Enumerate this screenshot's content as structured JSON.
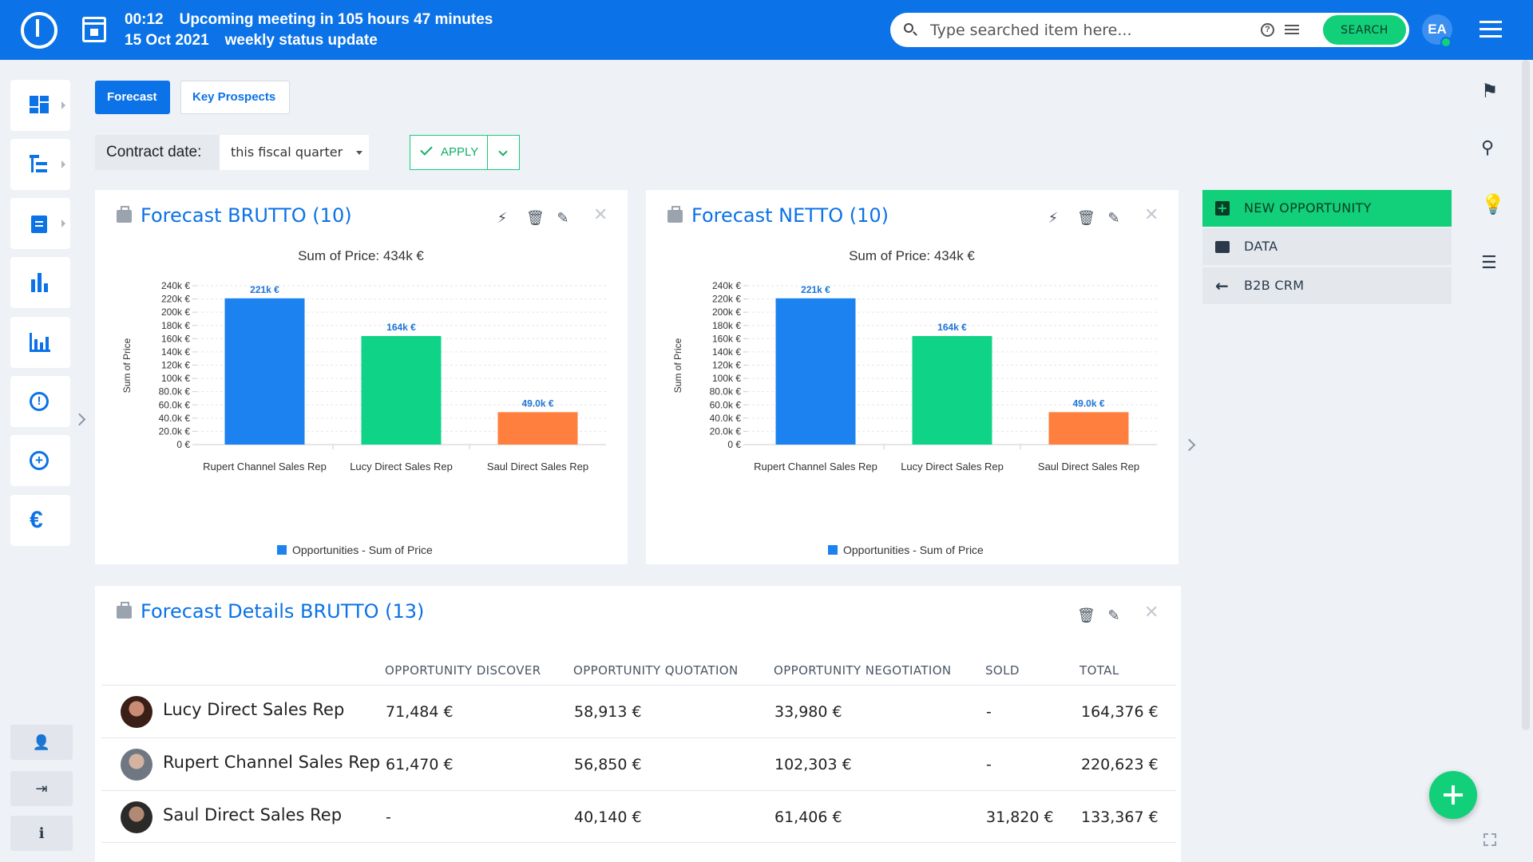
{
  "topbar": {
    "meeting_line1": [
      "00:12",
      "Upcoming meeting in 105 hours 47 minutes"
    ],
    "meeting_line2": [
      "15 Oct 2021",
      "weekly status update"
    ],
    "search_placeholder": "Type searched item here...",
    "search_button": "SEARCH",
    "user_initials": "EA"
  },
  "tabs": [
    "Forecast",
    "Key Prospects"
  ],
  "filter": {
    "label": "Contract date:",
    "value": "this fiscal quarter",
    "apply_label": "APPLY"
  },
  "right_panel": {
    "new_opportunity": "NEW OPPORTUNITY",
    "data": "DATA",
    "b2b_crm": "B2B CRM"
  },
  "colors": {
    "brand": "#0b72e7",
    "accent_green": "#12cf7a",
    "bar_blue": "#1b82f0",
    "bar_green": "#0fd488",
    "bar_orange": "#ff7f3f"
  },
  "chart_data": [
    {
      "type": "bar",
      "panel_title": "Forecast BRUTTO (10)",
      "title": "Sum of Price: 434k €",
      "ylabel": "Sum of Price",
      "xlabel": "",
      "categories": [
        "Rupert Channel Sales Rep",
        "Lucy Direct Sales Rep",
        "Saul Direct Sales Rep"
      ],
      "values": [
        221000,
        164000,
        49000
      ],
      "data_labels": [
        "221k €",
        "164k €",
        "49.0k €"
      ],
      "ylim": [
        0,
        240000
      ],
      "yticks": [
        "0 €",
        "20.0k €",
        "40.0k €",
        "60.0k €",
        "80.0k €",
        "100k €",
        "120k €",
        "140k €",
        "160k €",
        "180k €",
        "200k €",
        "220k €",
        "240k €"
      ],
      "legend": "Opportunities - Sum of Price",
      "legend_position": "bottom-center",
      "grid": true
    },
    {
      "type": "bar",
      "panel_title": "Forecast NETTO (10)",
      "title": "Sum of Price: 434k €",
      "ylabel": "Sum of Price",
      "xlabel": "",
      "categories": [
        "Rupert Channel Sales Rep",
        "Lucy Direct Sales Rep",
        "Saul Direct Sales Rep"
      ],
      "values": [
        221000,
        164000,
        49000
      ],
      "data_labels": [
        "221k €",
        "164k €",
        "49.0k €"
      ],
      "ylim": [
        0,
        240000
      ],
      "yticks": [
        "0 €",
        "20.0k €",
        "40.0k €",
        "60.0k €",
        "80.0k €",
        "100k €",
        "120k €",
        "140k €",
        "160k €",
        "180k €",
        "200k €",
        "220k €",
        "240k €"
      ],
      "legend": "Opportunities - Sum of Price",
      "legend_position": "bottom-center",
      "grid": true
    }
  ],
  "details": {
    "title": "Forecast Details BRUTTO (13)",
    "columns": [
      "OPPORTUNITY DISCOVER",
      "OPPORTUNITY QUOTATION",
      "OPPORTUNITY NEGOTIATION",
      "SOLD",
      "TOTAL"
    ],
    "rows": [
      {
        "name": "Lucy Direct Sales Rep",
        "values": [
          "71,484 €",
          "58,913 €",
          "33,980 €",
          "-",
          "164,376 €"
        ]
      },
      {
        "name": "Rupert Channel Sales Rep",
        "values": [
          "61,470 €",
          "56,850 €",
          "102,303 €",
          "-",
          "220,623 €"
        ]
      },
      {
        "name": "Saul Direct Sales Rep",
        "values": [
          "-",
          "40,140 €",
          "61,406 €",
          "31,820 €",
          "133,367 €"
        ]
      }
    ]
  }
}
